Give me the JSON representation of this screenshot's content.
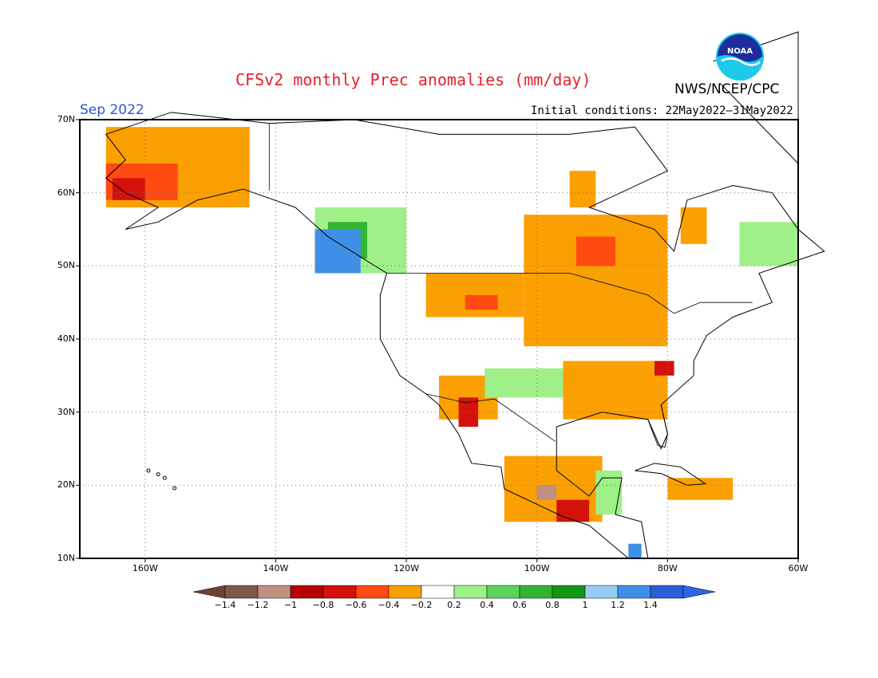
{
  "title": "CFSv2 monthly Prec anomalies (mm/day)",
  "agency": "NWS/NCEP/CPC",
  "logo_text": "NOAA",
  "month": "Sep 2022",
  "init_conditions": "Initial conditions: 22May2022–31May2022",
  "map": {
    "lat_labels": [
      "70N",
      "60N",
      "50N",
      "40N",
      "30N",
      "20N",
      "10N"
    ],
    "lon_labels": [
      "160W",
      "140W",
      "120W",
      "100W",
      "80W",
      "60W"
    ],
    "lat_range": [
      10,
      70
    ],
    "lon_range": [
      -170,
      -60
    ],
    "grid": "dotted"
  },
  "colorbar": {
    "labels": [
      "−1.4",
      "−1.2",
      "−1",
      "−0.8",
      "−0.6",
      "−0.4",
      "−0.2",
      "0.2",
      "0.4",
      "0.6",
      "0.8",
      "1",
      "1.2",
      "1.4"
    ],
    "colors": [
      "#80584a",
      "#c09080",
      "#b40000",
      "#d2120b",
      "#ff4a12",
      "#fba003",
      "#ffffff",
      "#9ff088",
      "#5ad45a",
      "#32b432",
      "#149614",
      "#99ccf5",
      "#3f8fe6",
      "#2a5fdc"
    ],
    "end_left": "#6e4236",
    "end_right": "#2d64e8"
  },
  "anomaly_regions": [
    {
      "name": "Alaska",
      "color": "#fba003",
      "lat": [
        58,
        69
      ],
      "lon": [
        -166,
        -144
      ]
    },
    {
      "name": "Alaska SW",
      "color": "#ff4a12",
      "lat": [
        59,
        64
      ],
      "lon": [
        -166,
        -155
      ]
    },
    {
      "name": "Alaska core",
      "color": "#d2120b",
      "lat": [
        59,
        62
      ],
      "lon": [
        -165,
        -160
      ]
    },
    {
      "name": "BC coast",
      "color": "#9ff088",
      "lat": [
        49,
        58
      ],
      "lon": [
        -134,
        -120
      ]
    },
    {
      "name": "BC coast core",
      "color": "#32b432",
      "lat": [
        51,
        56
      ],
      "lon": [
        -132,
        -126
      ]
    },
    {
      "name": "BC coast blue",
      "color": "#3f8fe6",
      "lat": [
        49,
        55
      ],
      "lon": [
        -134,
        -127
      ]
    },
    {
      "name": "Northern Plains",
      "color": "#fba003",
      "lat": [
        43,
        49
      ],
      "lon": [
        -117,
        -102
      ]
    },
    {
      "name": "Montana core",
      "color": "#ff4a12",
      "lat": [
        44,
        46
      ],
      "lon": [
        -111,
        -106
      ]
    },
    {
      "name": "Great Lakes",
      "color": "#fba003",
      "lat": [
        39,
        57
      ],
      "lon": [
        -102,
        -80
      ]
    },
    {
      "name": "Ontario",
      "color": "#ff4a12",
      "lat": [
        50,
        54
      ],
      "lon": [
        -94,
        -88
      ]
    },
    {
      "name": "Southeast",
      "color": "#fba003",
      "lat": [
        29,
        37
      ],
      "lon": [
        -96,
        -80
      ]
    },
    {
      "name": "Carolinas",
      "color": "#d2120b",
      "lat": [
        35,
        37
      ],
      "lon": [
        -82,
        -79
      ]
    },
    {
      "name": "Southwest",
      "color": "#fba003",
      "lat": [
        29,
        35
      ],
      "lon": [
        -115,
        -106
      ]
    },
    {
      "name": "Sonora",
      "color": "#d2120b",
      "lat": [
        28,
        32
      ],
      "lon": [
        -112,
        -109
      ]
    },
    {
      "name": "Southern Plains",
      "color": "#9ff088",
      "lat": [
        32,
        36
      ],
      "lon": [
        -108,
        -96
      ]
    },
    {
      "name": "Mexico",
      "color": "#fba003",
      "lat": [
        15,
        24
      ],
      "lon": [
        -105,
        -90
      ]
    },
    {
      "name": "Mexico south",
      "color": "#d2120b",
      "lat": [
        15,
        18
      ],
      "lon": [
        -97,
        -92
      ]
    },
    {
      "name": "Oaxaca",
      "color": "#c09080",
      "lat": [
        18,
        20
      ],
      "lon": [
        -100,
        -97
      ]
    },
    {
      "name": "Yucatan",
      "color": "#9ff088",
      "lat": [
        16,
        22
      ],
      "lon": [
        -91,
        -87
      ]
    },
    {
      "name": "Labrador",
      "color": "#9ff088",
      "lat": [
        50,
        56
      ],
      "lon": [
        -69,
        -60
      ]
    },
    {
      "name": "Quebec",
      "color": "#fba003",
      "lat": [
        53,
        58
      ],
      "lon": [
        -78,
        -74
      ]
    },
    {
      "name": "Hudson Bay west",
      "color": "#fba003",
      "lat": [
        58,
        63
      ],
      "lon": [
        -95,
        -91
      ]
    },
    {
      "name": "Caribbean",
      "color": "#fba003",
      "lat": [
        18,
        21
      ],
      "lon": [
        -80,
        -70
      ]
    },
    {
      "name": "Central America",
      "color": "#3f8fe6",
      "lat": [
        10,
        12
      ],
      "lon": [
        -86,
        -84
      ]
    }
  ]
}
